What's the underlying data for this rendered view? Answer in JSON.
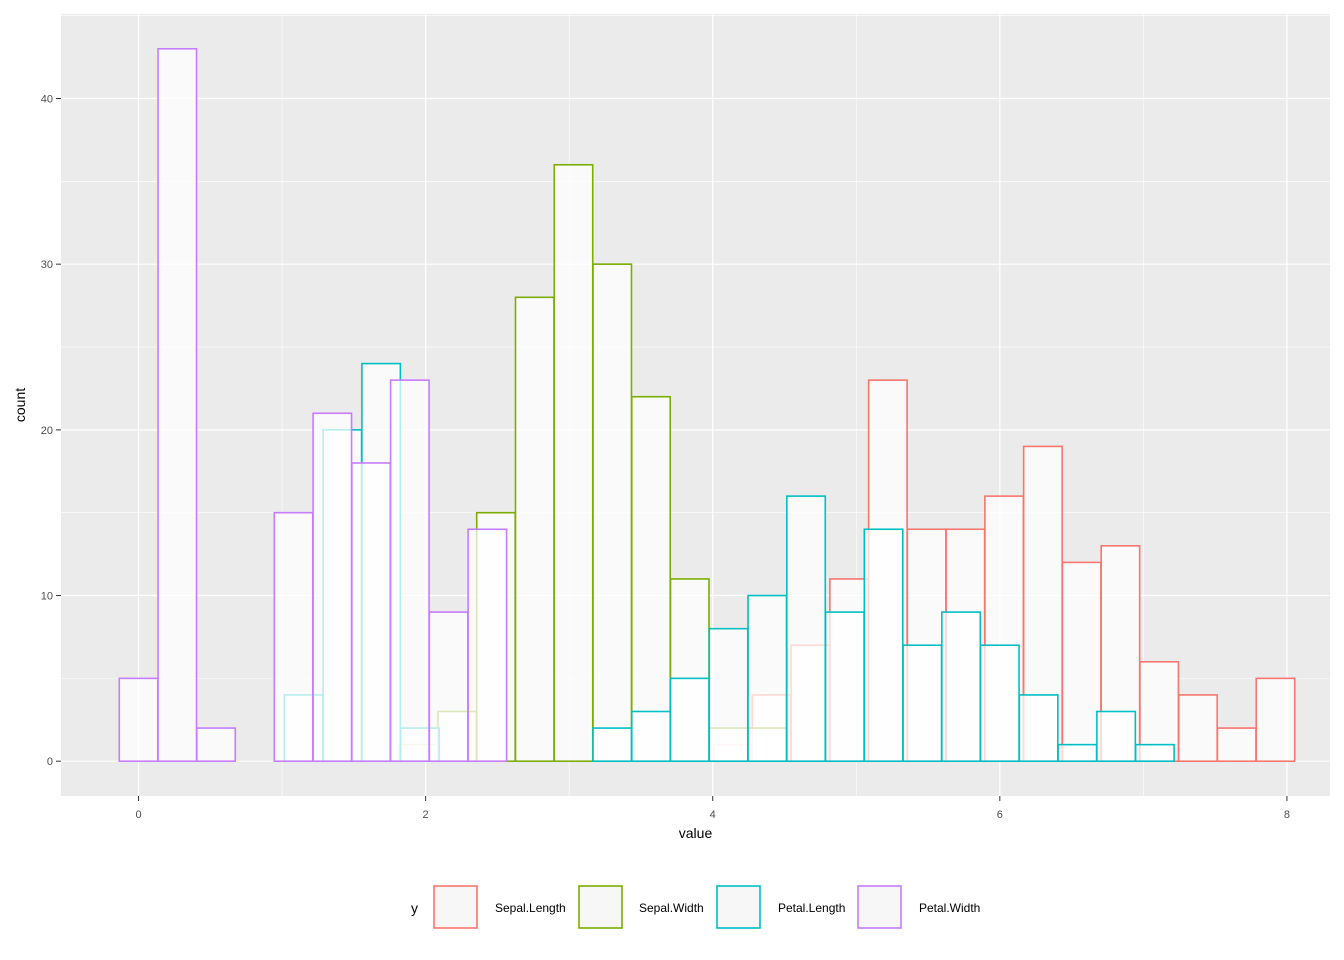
{
  "chart_data": {
    "type": "histogram",
    "xlabel": "value",
    "ylabel": "count",
    "xlim": [
      -0.54,
      8.3
    ],
    "ylim": [
      -2.1,
      45.1
    ],
    "x_ticks": [
      0,
      2,
      4,
      6,
      8
    ],
    "x_tick_labels": [
      "0",
      "2",
      "4",
      "6",
      "8"
    ],
    "y_ticks": [
      0,
      10,
      20,
      30,
      40
    ],
    "y_tick_labels": [
      "0",
      "10",
      "20",
      "30",
      "40"
    ],
    "grid": true,
    "legend": {
      "title": "y",
      "position": "bottom"
    },
    "bin_width": 0.268,
    "series": [
      {
        "name": "Sepal.Length",
        "color": "#F8766D",
        "bins": [
          [
            4.14,
            1
          ],
          [
            4.41,
            4
          ],
          [
            4.68,
            7
          ],
          [
            4.95,
            11
          ],
          [
            5.22,
            23
          ],
          [
            5.49,
            14
          ],
          [
            5.76,
            14
          ],
          [
            6.03,
            16
          ],
          [
            6.3,
            19
          ],
          [
            6.57,
            12
          ],
          [
            6.84,
            13
          ],
          [
            7.11,
            6
          ],
          [
            7.38,
            4
          ],
          [
            7.65,
            2
          ],
          [
            7.92,
            5
          ]
        ]
      },
      {
        "name": "Sepal.Width",
        "color": "#7CAE00",
        "bins": [
          [
            1.95,
            1
          ],
          [
            2.22,
            3
          ],
          [
            2.49,
            15
          ],
          [
            2.76,
            28
          ],
          [
            3.03,
            36
          ],
          [
            3.3,
            30
          ],
          [
            3.57,
            22
          ],
          [
            3.84,
            11
          ],
          [
            4.11,
            2
          ],
          [
            4.38,
            2
          ]
        ]
      },
      {
        "name": "Petal.Length",
        "color": "#00BFC4",
        "bins": [
          [
            1.15,
            4
          ],
          [
            1.42,
            20
          ],
          [
            1.69,
            24
          ],
          [
            1.96,
            2
          ],
          [
            3.3,
            2
          ],
          [
            3.57,
            3
          ],
          [
            3.84,
            5
          ],
          [
            4.11,
            8
          ],
          [
            4.38,
            10
          ],
          [
            4.65,
            16
          ],
          [
            4.92,
            9
          ],
          [
            5.19,
            14
          ],
          [
            5.46,
            7
          ],
          [
            5.73,
            9
          ],
          [
            6.0,
            7
          ],
          [
            6.27,
            4
          ],
          [
            6.54,
            1
          ],
          [
            6.81,
            3
          ],
          [
            7.08,
            1
          ]
        ]
      },
      {
        "name": "Petal.Width",
        "color": "#C77CFF",
        "bins": [
          [
            0.0,
            5
          ],
          [
            0.27,
            43
          ],
          [
            0.54,
            2
          ],
          [
            1.08,
            15
          ],
          [
            1.35,
            21
          ],
          [
            1.62,
            18
          ],
          [
            1.89,
            23
          ],
          [
            2.16,
            9
          ],
          [
            2.43,
            14
          ]
        ]
      }
    ]
  }
}
